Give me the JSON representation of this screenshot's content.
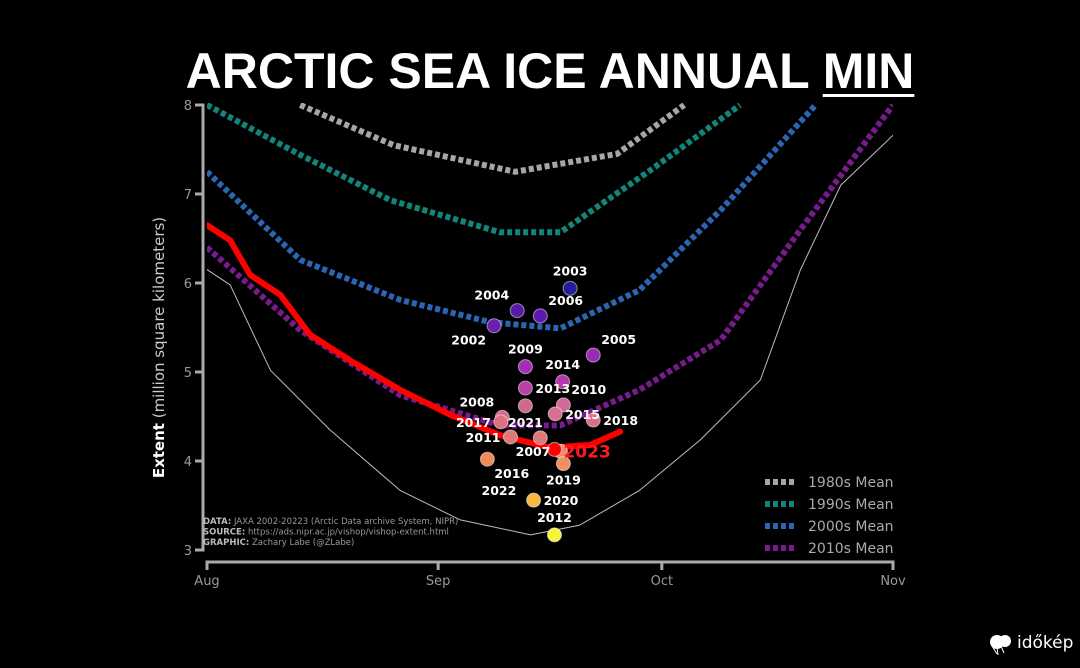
{
  "title": {
    "main": "ARCTIC SEA ICE ANNUAL ",
    "underlined": "MIN"
  },
  "chart_data": {
    "type": "line",
    "title": "ARCTIC SEA ICE ANNUAL MIN",
    "ylabel_bold": "Extent",
    "ylabel_rest": "(million square kilometers)",
    "xlabel": "",
    "ylim": [
      3,
      8
    ],
    "xlim_day_of_period": [
      0,
      92
    ],
    "yticks": [
      "3",
      "4",
      "5",
      "6",
      "7",
      "8"
    ],
    "xticks": [
      {
        "label": "Aug",
        "day": 0
      },
      {
        "label": "Sep",
        "day": 31
      },
      {
        "label": "Oct",
        "day": 61
      },
      {
        "label": "Nov",
        "day": 92
      }
    ],
    "grid": false,
    "legend_placement": "bottom-right",
    "series": [
      {
        "name": "1980s Mean",
        "color": "#a6a6a6",
        "style": "dotted",
        "x": [
          12.5,
          25,
          41.3,
          55,
          64
        ],
        "y": [
          8.0,
          7.55,
          7.25,
          7.45,
          8.0
        ]
      },
      {
        "name": "1990s Mean",
        "color": "#11867a",
        "style": "dotted",
        "x": [
          0,
          12.5,
          24.6,
          39.3,
          47.4,
          59.5,
          71.5
        ],
        "y": [
          8.0,
          7.44,
          6.93,
          6.57,
          6.57,
          7.27,
          8.0
        ]
      },
      {
        "name": "2000s Mean",
        "color": "#2a66b3",
        "style": "dotted",
        "x": [
          0,
          12.5,
          25.9,
          38,
          47.4,
          58,
          68.9,
          81.6
        ],
        "y": [
          7.25,
          6.26,
          5.81,
          5.56,
          5.49,
          5.92,
          6.82,
          8.0
        ]
      },
      {
        "name": "2010s Mean",
        "color": "#7a1a8f",
        "style": "dotted",
        "x": [
          0,
          12.5,
          25.9,
          39.3,
          47.4,
          58,
          68.9,
          79.6,
          92
        ],
        "y": [
          6.4,
          5.47,
          4.74,
          4.4,
          4.4,
          4.8,
          5.36,
          6.6,
          8.0
        ]
      },
      {
        "color": "#ff0000",
        "style": "thick",
        "x": [
          0,
          3.1,
          5.8,
          9.8,
          13.8,
          19.2,
          25.9,
          32.6,
          39.3,
          46,
          51.4,
          55.4
        ],
        "y": [
          6.65,
          6.48,
          6.09,
          5.87,
          5.42,
          5.13,
          4.8,
          4.52,
          4.29,
          4.15,
          4.18,
          4.33
        ]
      },
      {
        "color": "#bdbdbd",
        "style": "thin",
        "x": [
          0,
          3.1,
          8.5,
          16.5,
          25.9,
          33.9,
          43.4,
          50,
          58,
          66.2,
          74.2,
          79.6,
          85,
          92
        ],
        "y": [
          6.15,
          5.98,
          5.02,
          4.35,
          3.67,
          3.34,
          3.17,
          3.28,
          3.67,
          4.24,
          4.91,
          6.15,
          7.1,
          7.66
        ]
      }
    ],
    "minima": [
      {
        "year": "2002",
        "day": 38.5,
        "value": 5.52,
        "color": "#6a1fb0",
        "label_pos": "bl"
      },
      {
        "year": "2003",
        "day": 48.7,
        "value": 5.94,
        "color": "#1f1f9c",
        "label_pos": "t"
      },
      {
        "year": "2004",
        "day": 41.6,
        "value": 5.69,
        "color": "#5a1aa8",
        "label_pos": "tl"
      },
      {
        "year": "2005",
        "day": 51.8,
        "value": 5.19,
        "color": "#9a2ab8",
        "label_pos": "tr"
      },
      {
        "year": "2006",
        "day": 44.7,
        "value": 5.63,
        "color": "#5e1ab0",
        "label_pos": "tr"
      },
      {
        "year": "2007",
        "day": 47.4,
        "value": 4.11,
        "color": "#f08a70",
        "label_pos": "r"
      },
      {
        "year": "2008",
        "day": 39.6,
        "value": 4.49,
        "color": "#d86a8a",
        "label_pos": "tl"
      },
      {
        "year": "2009",
        "day": 42.7,
        "value": 5.06,
        "color": "#a62cb8",
        "label_pos": "t"
      },
      {
        "year": "2010",
        "day": 47.8,
        "value": 4.63,
        "color": "#d06a98",
        "label_pos": "tr"
      },
      {
        "year": "2011",
        "day": 40.7,
        "value": 4.27,
        "color": "#e07878",
        "label_pos": "b"
      },
      {
        "year": "2012",
        "day": 46.6,
        "value": 3.17,
        "color": "#f4f43a",
        "label_pos": "t"
      },
      {
        "year": "2013",
        "day": 42.7,
        "value": 4.82,
        "color": "#b840a8",
        "label_pos": "l"
      },
      {
        "year": "2014",
        "day": 47.7,
        "value": 4.89,
        "color": "#b23aaa",
        "label_pos": "br"
      },
      {
        "year": "2015",
        "day": 46.7,
        "value": 4.53,
        "color": "#d86e90",
        "label_pos": "r"
      },
      {
        "year": "2016",
        "day": 37.6,
        "value": 4.02,
        "color": "#f08c5a",
        "label_pos": "br"
      },
      {
        "year": "2017",
        "day": 39.4,
        "value": 4.44,
        "color": "#dc7080",
        "label_pos": "l"
      },
      {
        "year": "2018",
        "day": 51.8,
        "value": 4.46,
        "color": "#dc7088",
        "label_pos": "r"
      },
      {
        "year": "2019",
        "day": 47.8,
        "value": 3.97,
        "color": "#f09060",
        "label_pos": "b"
      },
      {
        "year": "2020",
        "day": 43.8,
        "value": 3.56,
        "color": "#f8b840",
        "label_pos": "b"
      },
      {
        "year": "2021",
        "day": 42.7,
        "value": 4.62,
        "color": "#d2688e",
        "label_pos": "b"
      },
      {
        "year": "2022",
        "day": 44.7,
        "value": 4.26,
        "color": "#e07878",
        "label_pos": "tr"
      },
      {
        "year": "2023",
        "day": 46.6,
        "value": 4.13,
        "color": "#ff0000",
        "label_pos": "r2023",
        "label_color": "#ff1a1a"
      }
    ],
    "annotations": [
      {
        "bold": "DATA:",
        "text": " JAXA 2002-20223 (Arctic Data archive System, NIPR)"
      },
      {
        "bold": "SOURCE:",
        "text": " https://ads.nipr.ac.jp/vishop/vishop-extent.html"
      },
      {
        "bold": "GRAPHIC:",
        "text": " Zachary Labe (@ZLabe)"
      }
    ]
  },
  "logo": {
    "text": "időkép"
  }
}
